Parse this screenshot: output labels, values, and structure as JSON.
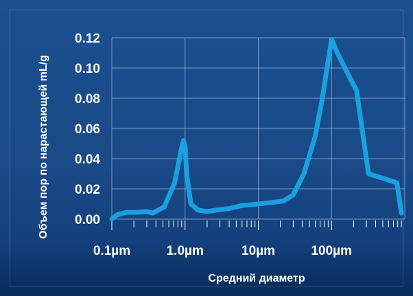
{
  "chart_data": {
    "type": "line",
    "title": "",
    "xlabel": "Средний диаметр",
    "ylabel": "Объем пор по нарастающей mL/g",
    "x_scale": "log",
    "xlim_um": [
      0.1,
      1000
    ],
    "ylim": [
      0,
      0.12
    ],
    "y_ticks": [
      "0.00",
      "0.02",
      "0.04",
      "0.06",
      "0.08",
      "0.10",
      "0.12"
    ],
    "x_ticks": [
      "0.1µm",
      "1.0µm",
      "10µm",
      "100µm"
    ],
    "x_tick_values_um": [
      0.1,
      1,
      10,
      100
    ],
    "grid": true,
    "line_color": "#1a9fe0",
    "series": [
      {
        "x_um": [
          0.1,
          0.12,
          0.16,
          0.22,
          0.3,
          0.36,
          0.52,
          0.72,
          0.88,
          0.95,
          1.0,
          1.05,
          1.2,
          1.5,
          2.0,
          2.7,
          4,
          6,
          10,
          15,
          22,
          30,
          42,
          60,
          75,
          90,
          100,
          120,
          160,
          220,
          320,
          500,
          780,
          900
        ],
        "y": [
          0.0,
          0.003,
          0.0045,
          0.0045,
          0.005,
          0.004,
          0.008,
          0.024,
          0.045,
          0.052,
          0.048,
          0.03,
          0.01,
          0.006,
          0.005,
          0.006,
          0.007,
          0.009,
          0.01,
          0.011,
          0.012,
          0.016,
          0.03,
          0.055,
          0.08,
          0.105,
          0.119,
          0.11,
          0.098,
          0.085,
          0.03,
          0.027,
          0.024,
          0.004
        ]
      }
    ]
  }
}
